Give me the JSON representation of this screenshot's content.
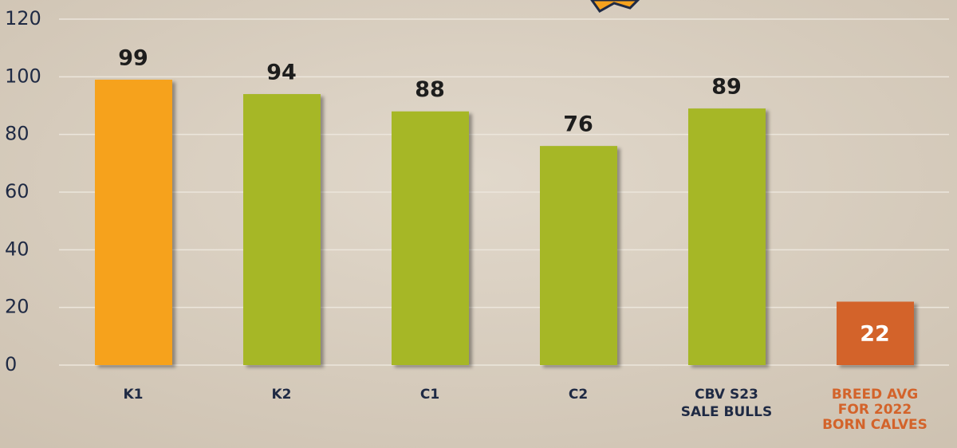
{
  "chart_data": {
    "type": "bar",
    "categories": [
      [
        "K1"
      ],
      [
        "K2"
      ],
      [
        "C1"
      ],
      [
        "C2"
      ],
      [
        "CBV S23",
        "SALE BULLS"
      ],
      [
        "BREED AVG",
        "FOR 2022",
        "BORN CALVES"
      ]
    ],
    "values": [
      99,
      94,
      88,
      76,
      89,
      22
    ],
    "colors": [
      "#f6a21e",
      "#a6b726",
      "#a6b726",
      "#a6b726",
      "#a6b726",
      "#d3632a"
    ],
    "label_colors": [
      "#1f2a44",
      "#1f2a44",
      "#1f2a44",
      "#1f2a44",
      "#1f2a44",
      "#d3632a"
    ],
    "ylim": [
      0,
      120
    ],
    "yticks": [
      0,
      20,
      40,
      60,
      80,
      100,
      120
    ],
    "grid": true
  }
}
